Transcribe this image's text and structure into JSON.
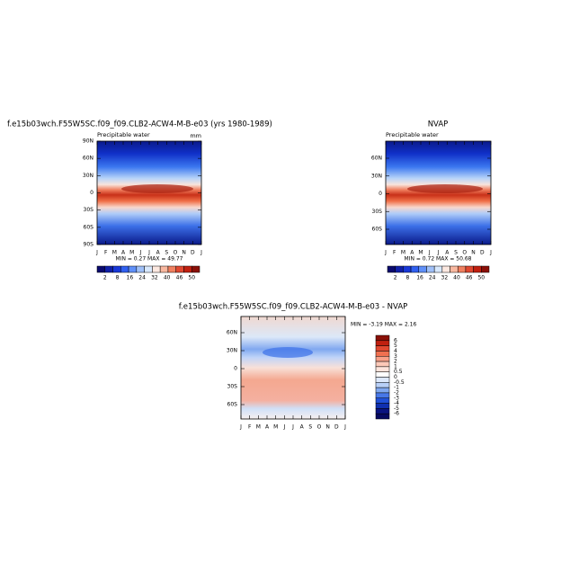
{
  "panels": [
    {
      "title": "f.e15b03wch.F55W5SC.f09_f09.CLB2-ACW4-M-B-e03 (yrs 1980-1989)",
      "subtitle": "Precipitable water",
      "units": "mm",
      "yticks": [
        "90N",
        "60N",
        "30N",
        "0",
        "30S",
        "60S",
        "90S"
      ],
      "xticks": [
        "J",
        "F",
        "M",
        "A",
        "M",
        "J",
        "J",
        "A",
        "S",
        "O",
        "N",
        "D",
        "J"
      ],
      "stats": "MIN =   0.27 MAX =   49.77",
      "colorbar": [
        2,
        8,
        16,
        24,
        32,
        40,
        46,
        50
      ]
    },
    {
      "title": "NVAP",
      "subtitle": "Precipitable water",
      "yticks": [
        "60N",
        "30N",
        "0",
        "30S",
        "60S"
      ],
      "xticks": [
        "J",
        "F",
        "M",
        "A",
        "M",
        "J",
        "J",
        "A",
        "S",
        "O",
        "N",
        "D",
        "J"
      ],
      "stats": "MIN =   0.72 MAX =   50.68",
      "colorbar": [
        2,
        8,
        16,
        24,
        32,
        40,
        46,
        50
      ]
    },
    {
      "title": "f.e15b03wch.F55W5SC.f09_f09.CLB2-ACW4-M-B-e03 - NVAP",
      "yticks": [
        "60N",
        "30N",
        "0",
        "30S",
        "60S"
      ],
      "xticks": [
        "J",
        "F",
        "M",
        "A",
        "M",
        "J",
        "J",
        "A",
        "S",
        "O",
        "N",
        "D",
        "J"
      ],
      "stats": "MIN =  -3.19 MAX =    2.16",
      "colorbar": [
        6,
        5,
        4,
        3,
        2,
        1,
        0.5,
        0,
        -0.5,
        -1,
        -2,
        -3,
        -4,
        -5,
        -6
      ]
    }
  ]
}
